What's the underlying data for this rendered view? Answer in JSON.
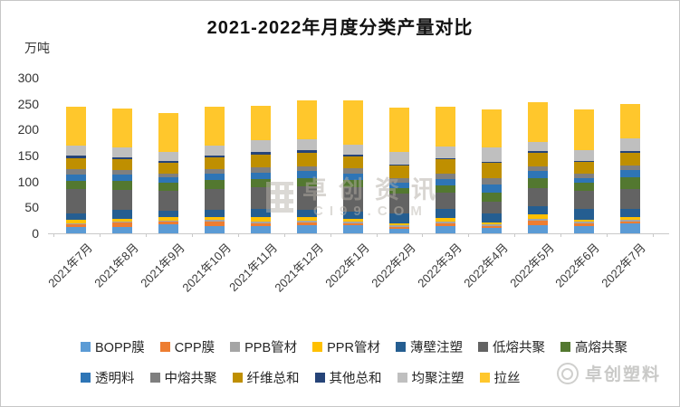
{
  "title": "2021-2022年月度分类产量对比",
  "y_axis": {
    "unit": "万吨"
  },
  "watermark": {
    "text": "卓创资讯",
    "subtext": "CI99.COM"
  },
  "brand": {
    "name": "卓创塑料"
  },
  "chart_data": {
    "type": "bar",
    "stacked": true,
    "title": "2021-2022年月度分类产量对比",
    "xlabel": "",
    "ylabel": "万吨",
    "ylim": [
      0,
      300
    ],
    "ytick_step": 50,
    "grid": false,
    "legend_position": "bottom",
    "legend_rows": [
      7,
      6
    ],
    "categories": [
      "2021年7月",
      "2021年8月",
      "2021年9月",
      "2021年10月",
      "2021年11月",
      "2021年12月",
      "2022年1月",
      "2022年2月",
      "2022年3月",
      "2022年4月",
      "2022年5月",
      "2022年6月",
      "2022年7月"
    ],
    "series": [
      {
        "name": "BOPP膜",
        "color": "#5B9BD5",
        "values": [
          13,
          13,
          18,
          14,
          14,
          16,
          15,
          8,
          14,
          10,
          16,
          14,
          20
        ]
      },
      {
        "name": "CPP膜",
        "color": "#ED7D31",
        "values": [
          5,
          8,
          5,
          9,
          5,
          5,
          4,
          5,
          6,
          4,
          8,
          5,
          3
        ]
      },
      {
        "name": "PPB管材",
        "color": "#A5A5A5",
        "values": [
          2,
          2,
          2,
          3,
          4,
          3,
          3,
          2,
          3,
          3,
          4,
          3,
          3
        ]
      },
      {
        "name": "PPR管材",
        "color": "#FFC000",
        "values": [
          7,
          5,
          6,
          6,
          8,
          7,
          6,
          4,
          7,
          4,
          8,
          5,
          6
        ]
      },
      {
        "name": "薄壁注塑",
        "color": "#255E91",
        "values": [
          12,
          17,
          12,
          14,
          16,
          15,
          14,
          20,
          18,
          17,
          16,
          20,
          16
        ]
      },
      {
        "name": "低熔共聚",
        "color": "#636363",
        "values": [
          47,
          38,
          40,
          40,
          42,
          45,
          48,
          38,
          30,
          23,
          35,
          35,
          38
        ]
      },
      {
        "name": "高熔共聚",
        "color": "#537830",
        "values": [
          16,
          18,
          15,
          17,
          16,
          15,
          14,
          10,
          14,
          17,
          20,
          15,
          22
        ]
      },
      {
        "name": "透明料",
        "color": "#2E75B6",
        "values": [
          12,
          12,
          10,
          12,
          12,
          14,
          12,
          10,
          13,
          17,
          14,
          10,
          15
        ]
      },
      {
        "name": "中熔共聚",
        "color": "#7F7F7F",
        "values": [
          10,
          9,
          8,
          9,
          10,
          10,
          10,
          10,
          10,
          12,
          8,
          8,
          8
        ]
      },
      {
        "name": "纤维总和",
        "color": "#BF8F00",
        "values": [
          21,
          21,
          20,
          22,
          24,
          25,
          22,
          24,
          28,
          29,
          26,
          22,
          25
        ]
      },
      {
        "name": "其他总和",
        "color": "#264478",
        "values": [
          5,
          3,
          3,
          4,
          6,
          5,
          4,
          2,
          2,
          2,
          3,
          3,
          3
        ]
      },
      {
        "name": "均聚注塑",
        "color": "#BFBFBF",
        "values": [
          19,
          20,
          18,
          20,
          22,
          22,
          20,
          24,
          22,
          29,
          18,
          20,
          24
        ]
      },
      {
        "name": "拉丝",
        "color": "#FFC72C",
        "values": [
          76,
          75,
          76,
          75,
          67,
          75,
          85,
          86,
          78,
          73,
          76,
          79,
          67
        ]
      }
    ]
  }
}
